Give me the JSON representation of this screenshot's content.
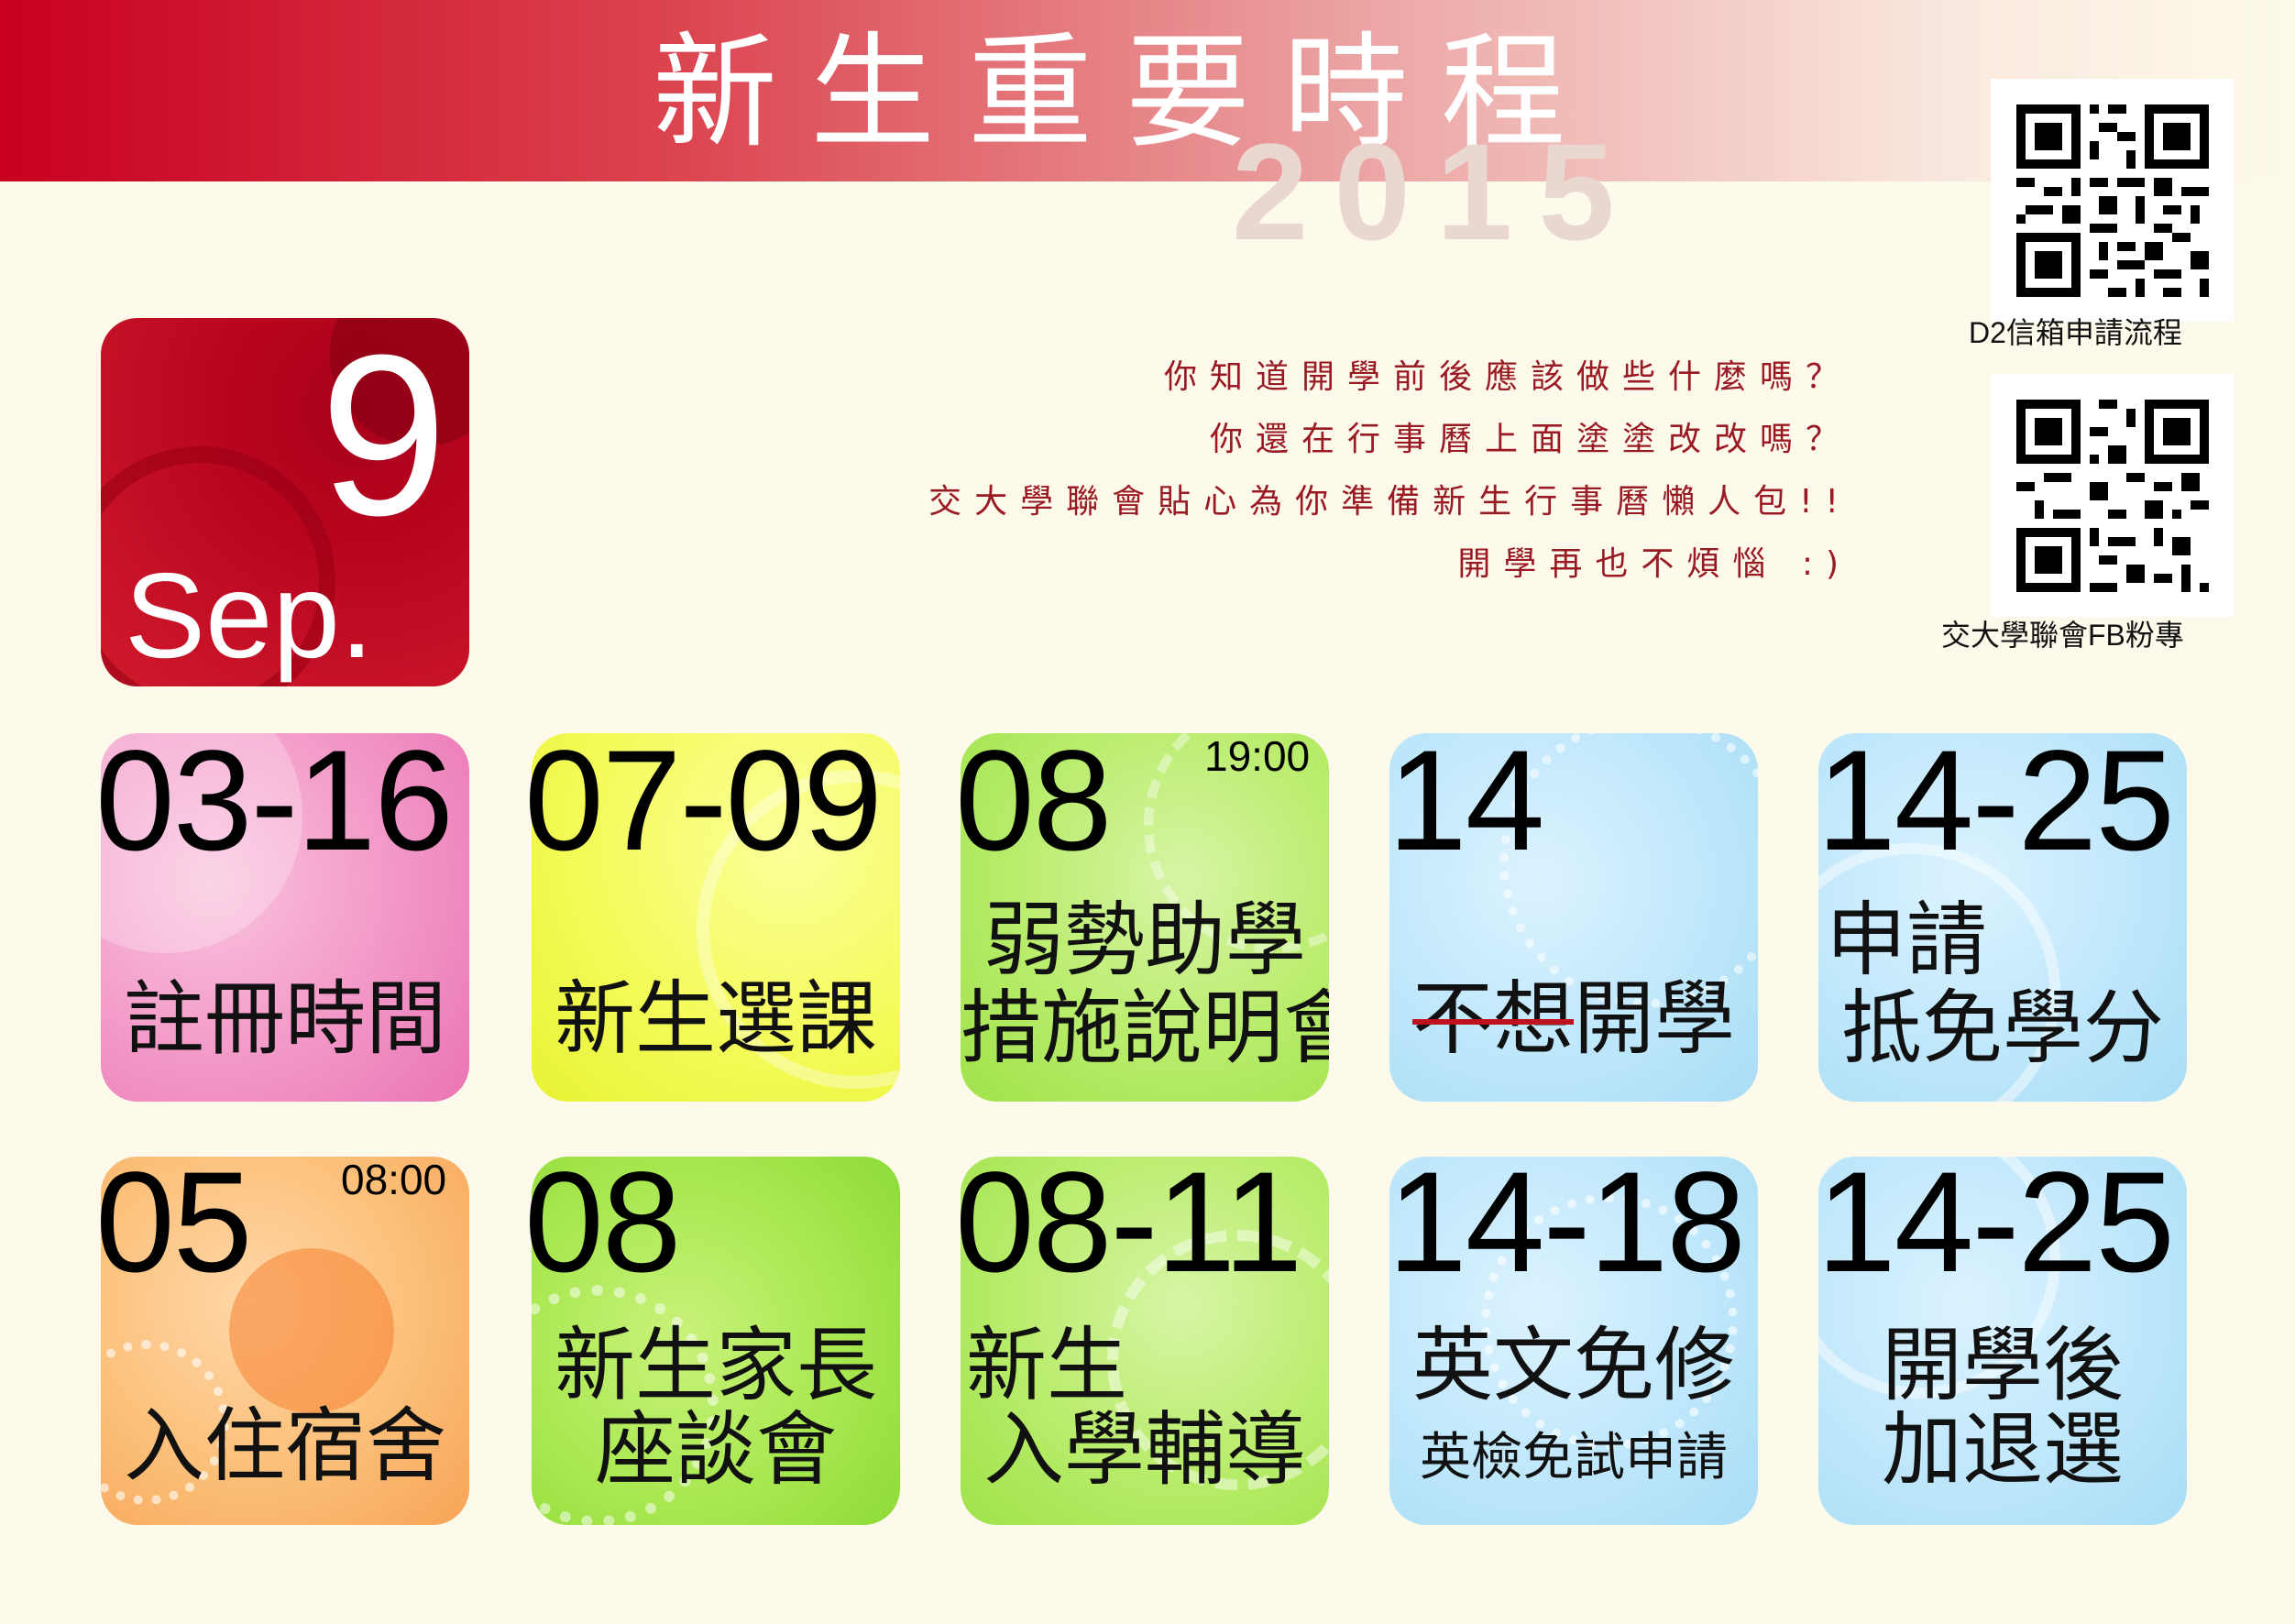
{
  "header": {
    "title": "新生重要時程",
    "year": "2015"
  },
  "month": {
    "number": "9",
    "name": "Sep."
  },
  "intro": {
    "lines": [
      "你知道開學前後應該做些什麼嗎？",
      "你還在行事曆上面塗塗改改嗎？",
      "交大學聯會貼心為你準備新生行事曆懶人包!!",
      "開學再也不煩惱 :)"
    ]
  },
  "qr_codes": [
    {
      "caption": "D2信箱申請流程"
    },
    {
      "caption": "交大學聯會FB粉專"
    }
  ],
  "events": [
    {
      "date": "03-16",
      "time": "",
      "lines": [
        "註冊時間"
      ]
    },
    {
      "date": "07-09",
      "time": "",
      "lines": [
        "新生選課"
      ]
    },
    {
      "date": "08",
      "time": "19:00",
      "lines": [
        "弱勢助學",
        "措施說明會"
      ]
    },
    {
      "date": "14",
      "time": "",
      "strike": "不想",
      "rest": "開學"
    },
    {
      "date": "14-25",
      "time": "",
      "lines": [
        "申請",
        "抵免學分"
      ]
    },
    {
      "date": "05",
      "time": "08:00",
      "lines": [
        "入住宿舍"
      ]
    },
    {
      "date": "08",
      "time": "",
      "lines": [
        "新生家長",
        "座談會"
      ]
    },
    {
      "date": "08-11",
      "time": "",
      "lines": [
        "新生",
        "入學輔導"
      ]
    },
    {
      "date": "14-18",
      "time": "",
      "lines": [
        "英文免修"
      ],
      "sub": "英檢免試申請"
    },
    {
      "date": "14-25",
      "time": "",
      "lines": [
        "開學後",
        "加退選"
      ]
    }
  ],
  "colors": {
    "banner": "#c8001e",
    "intro_text": "#9a1a24",
    "background": "#fdfaeb"
  }
}
